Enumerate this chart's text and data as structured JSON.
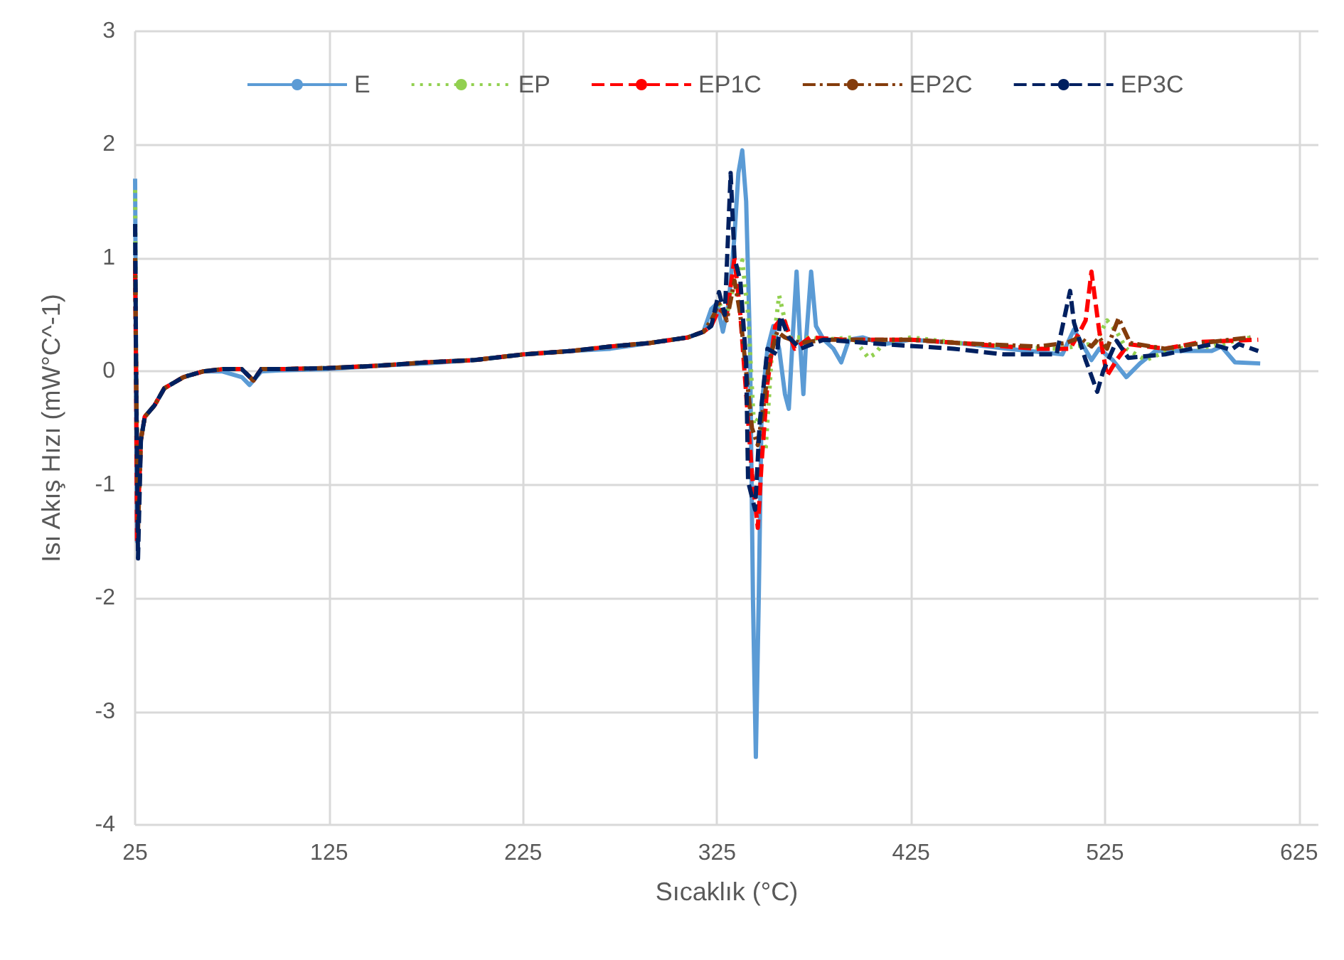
{
  "chart_data": {
    "type": "line",
    "xlabel": "Sıcaklık (°C)",
    "ylabel": "Isı Akış Hızı (mW°C^-1)",
    "xlim": [
      25,
      635
    ],
    "xticks": [
      25,
      125,
      225,
      325,
      425,
      525,
      625
    ],
    "ylim": [
      -4,
      3
    ],
    "yticks": [
      -4,
      -3,
      -2,
      -1,
      0,
      1,
      2,
      3
    ],
    "grid": true,
    "legend": "top",
    "marker": "none",
    "series": [
      {
        "name": "E",
        "color": "#5b9bd5",
        "line_style": "solid",
        "x": [
          25,
          25.5,
          26,
          27,
          28,
          30,
          35,
          40,
          50,
          60,
          70,
          80,
          84,
          90,
          100,
          125,
          150,
          175,
          200,
          225,
          250,
          270,
          290,
          310,
          318,
          322,
          325,
          328,
          331,
          334,
          336,
          338,
          340,
          342,
          343.5,
          345,
          346.5,
          348,
          351,
          354,
          357,
          360,
          362,
          364,
          366,
          368,
          369.5,
          371,
          373.5,
          376,
          380,
          385,
          389,
          393,
          400,
          411,
          425,
          450,
          475,
          503,
          509,
          518,
          522,
          529,
          536,
          543,
          551,
          580,
          585,
          592,
          605
        ],
        "values": [
          1.7,
          0,
          -1.5,
          -1.0,
          -0.6,
          -0.4,
          -0.3,
          -0.15,
          -0.05,
          0,
          0,
          -0.05,
          -0.12,
          0,
          0.01,
          0.02,
          0.05,
          0.07,
          0.1,
          0.15,
          0.18,
          0.2,
          0.25,
          0.3,
          0.35,
          0.55,
          0.6,
          0.35,
          0.6,
          1.2,
          1.75,
          1.95,
          1.5,
          0.2,
          -2.0,
          -3.4,
          -2.0,
          -0.3,
          0.2,
          0.4,
          0.2,
          -0.2,
          -0.33,
          0.3,
          0.88,
          0.2,
          -0.2,
          0.3,
          0.88,
          0.4,
          0.28,
          0.2,
          0.08,
          0.28,
          0.3,
          0.24,
          0.28,
          0.25,
          0.2,
          0.15,
          0.37,
          0.1,
          0.2,
          0.1,
          -0.05,
          0.07,
          0.18,
          0.18,
          0.22,
          0.08,
          0.07
        ]
      },
      {
        "name": "EP",
        "color": "#92d050",
        "line_style": "dotted",
        "x": [
          25,
          25.5,
          26.5,
          28,
          30,
          35,
          40,
          50,
          60,
          70,
          80,
          86,
          90,
          100,
          125,
          150,
          175,
          200,
          225,
          250,
          270,
          290,
          310,
          318,
          322,
          326,
          330,
          334,
          338,
          341,
          344,
          347,
          350,
          353,
          357,
          362,
          370,
          380,
          395,
          403,
          406,
          411,
          425,
          450,
          475,
          500,
          510,
          520,
          526,
          531,
          536,
          546,
          560,
          580,
          600
        ],
        "values": [
          1.6,
          0,
          -1.2,
          -0.6,
          -0.4,
          -0.3,
          -0.15,
          -0.05,
          0,
          0.02,
          0.02,
          -0.08,
          0.02,
          0.02,
          0.03,
          0.05,
          0.08,
          0.1,
          0.15,
          0.18,
          0.22,
          0.25,
          0.3,
          0.35,
          0.45,
          0.6,
          0.5,
          0.8,
          0.98,
          0.5,
          -0.47,
          -0.4,
          -0.7,
          0.1,
          0.67,
          0.3,
          0.3,
          0.28,
          0.3,
          0.12,
          0.15,
          0.25,
          0.3,
          0.25,
          0.22,
          0.2,
          0.22,
          0.25,
          0.45,
          0.35,
          0.2,
          0.1,
          0.2,
          0.22,
          0.3
        ]
      },
      {
        "name": "EP1C",
        "color": "#ff0000",
        "line_style": "dashed",
        "x": [
          25,
          25.5,
          26,
          28,
          30,
          35,
          40,
          50,
          60,
          70,
          80,
          86,
          90,
          100,
          125,
          150,
          175,
          200,
          225,
          250,
          270,
          290,
          310,
          318,
          322,
          326,
          330,
          334,
          337,
          340,
          343,
          346,
          348,
          351,
          355,
          359,
          365,
          373,
          390,
          425,
          450,
          490,
          507,
          512,
          515,
          518,
          522,
          526,
          531,
          537,
          556,
          575,
          604
        ],
        "values": [
          0.9,
          0,
          -1.5,
          -0.6,
          -0.4,
          -0.3,
          -0.15,
          -0.05,
          0,
          0.02,
          0.02,
          -0.08,
          0.02,
          0.02,
          0.03,
          0.05,
          0.08,
          0.1,
          0.15,
          0.18,
          0.22,
          0.25,
          0.3,
          0.35,
          0.4,
          0.55,
          0.5,
          1.0,
          0.5,
          -0.2,
          -0.9,
          -1.38,
          -0.8,
          -0.1,
          0.4,
          0.48,
          0.2,
          0.3,
          0.28,
          0.28,
          0.25,
          0.2,
          0.2,
          0.35,
          0.45,
          0.88,
          0.36,
          -0.04,
          0.1,
          0.24,
          0.2,
          0.26,
          0.28
        ]
      },
      {
        "name": "EP2C",
        "color": "#843c0c",
        "line_style": "dashdot",
        "x": [
          25,
          25.5,
          26.5,
          28,
          30,
          35,
          40,
          50,
          60,
          70,
          80,
          86,
          90,
          100,
          125,
          150,
          175,
          200,
          225,
          250,
          270,
          290,
          310,
          318,
          322,
          326,
          330,
          334,
          337,
          340,
          343,
          346,
          349,
          352,
          356,
          360,
          368,
          380,
          425,
          450,
          490,
          505,
          512,
          518,
          522,
          526,
          532,
          538,
          556,
          575,
          600
        ],
        "values": [
          1.0,
          0,
          -1.4,
          -0.6,
          -0.4,
          -0.3,
          -0.15,
          -0.05,
          0,
          0.02,
          0.02,
          -0.08,
          0.02,
          0.02,
          0.03,
          0.05,
          0.08,
          0.1,
          0.15,
          0.18,
          0.22,
          0.25,
          0.3,
          0.35,
          0.45,
          0.6,
          0.45,
          0.8,
          0.5,
          0.0,
          -0.5,
          -0.65,
          -0.3,
          0.1,
          0.35,
          0.3,
          0.25,
          0.28,
          0.28,
          0.25,
          0.22,
          0.25,
          0.3,
          0.22,
          0.3,
          0.2,
          0.47,
          0.25,
          0.2,
          0.25,
          0.3
        ]
      },
      {
        "name": "EP3C",
        "color": "#002060",
        "line_style": "dashed",
        "x": [
          25,
          25.5,
          26.5,
          28,
          30,
          35,
          40,
          50,
          60,
          70,
          80,
          86,
          90,
          100,
          125,
          150,
          175,
          200,
          225,
          250,
          270,
          290,
          310,
          318,
          322,
          326,
          329,
          332,
          334,
          337,
          340,
          341,
          344.6,
          347,
          351,
          356,
          357.6,
          362,
          368,
          380,
          411,
          447,
          473,
          500,
          507,
          509,
          515,
          521,
          524,
          531,
          537,
          556,
          580,
          590,
          594,
          604
        ],
        "values": [
          1.3,
          0,
          -1.65,
          -0.6,
          -0.4,
          -0.3,
          -0.15,
          -0.05,
          0,
          0.02,
          0.02,
          -0.08,
          0.02,
          0.02,
          0.03,
          0.05,
          0.08,
          0.1,
          0.15,
          0.18,
          0.22,
          0.25,
          0.3,
          0.35,
          0.4,
          0.7,
          0.5,
          1.75,
          1.0,
          0.8,
          0.08,
          -0.97,
          -1.22,
          -0.45,
          0.2,
          0.15,
          0.49,
          0.3,
          0.2,
          0.28,
          0.24,
          0.2,
          0.15,
          0.15,
          0.71,
          0.43,
          0.1,
          -0.18,
          0,
          0.27,
          0.12,
          0.15,
          0.24,
          0.19,
          0.24,
          0.18
        ]
      }
    ]
  }
}
